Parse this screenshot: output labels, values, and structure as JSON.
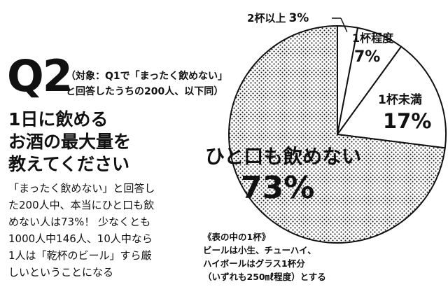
{
  "question": {
    "number": "Q2",
    "subject_line1": "（対象：Q1で「まったく飲めない」",
    "subject_line2": "と回答したうちの200人、以下同）",
    "text_lines": [
      "1日に飲める",
      "お酒の最大量を",
      "教えてください"
    ]
  },
  "body_text_lines": [
    "「まったく飲めない」と回答し",
    "た200人中、本当にひと口も飲",
    "めない人は73%！ 少なくとも",
    "1000人中146人、10人中なら",
    "1人は「乾杯のビール」すら厳",
    "しいということになる"
  ],
  "note_lines": [
    "《表の中の1杯》",
    "ビールは小生、チューハイ、",
    "ハイボールはグラス1杯分",
    "（いずれも250㎖程度）とする"
  ],
  "chart_data": {
    "type": "pie",
    "title": "",
    "start": "12 o'clock, clockwise",
    "slices": [
      {
        "label": "2杯以上",
        "value": 3,
        "value_text": "3%",
        "fill": "white"
      },
      {
        "label": "1杯程度",
        "value": 7,
        "value_text": "7%",
        "fill": "white"
      },
      {
        "label": "1杯未満",
        "value": 17,
        "value_text": "17%",
        "fill": "white"
      },
      {
        "label": "ひと口も飲めない",
        "value": 73,
        "value_text": "73%",
        "fill": "dots"
      }
    ],
    "colors": {
      "stroke": "#111111",
      "dot": "#111111",
      "background": "#ffffff"
    }
  }
}
